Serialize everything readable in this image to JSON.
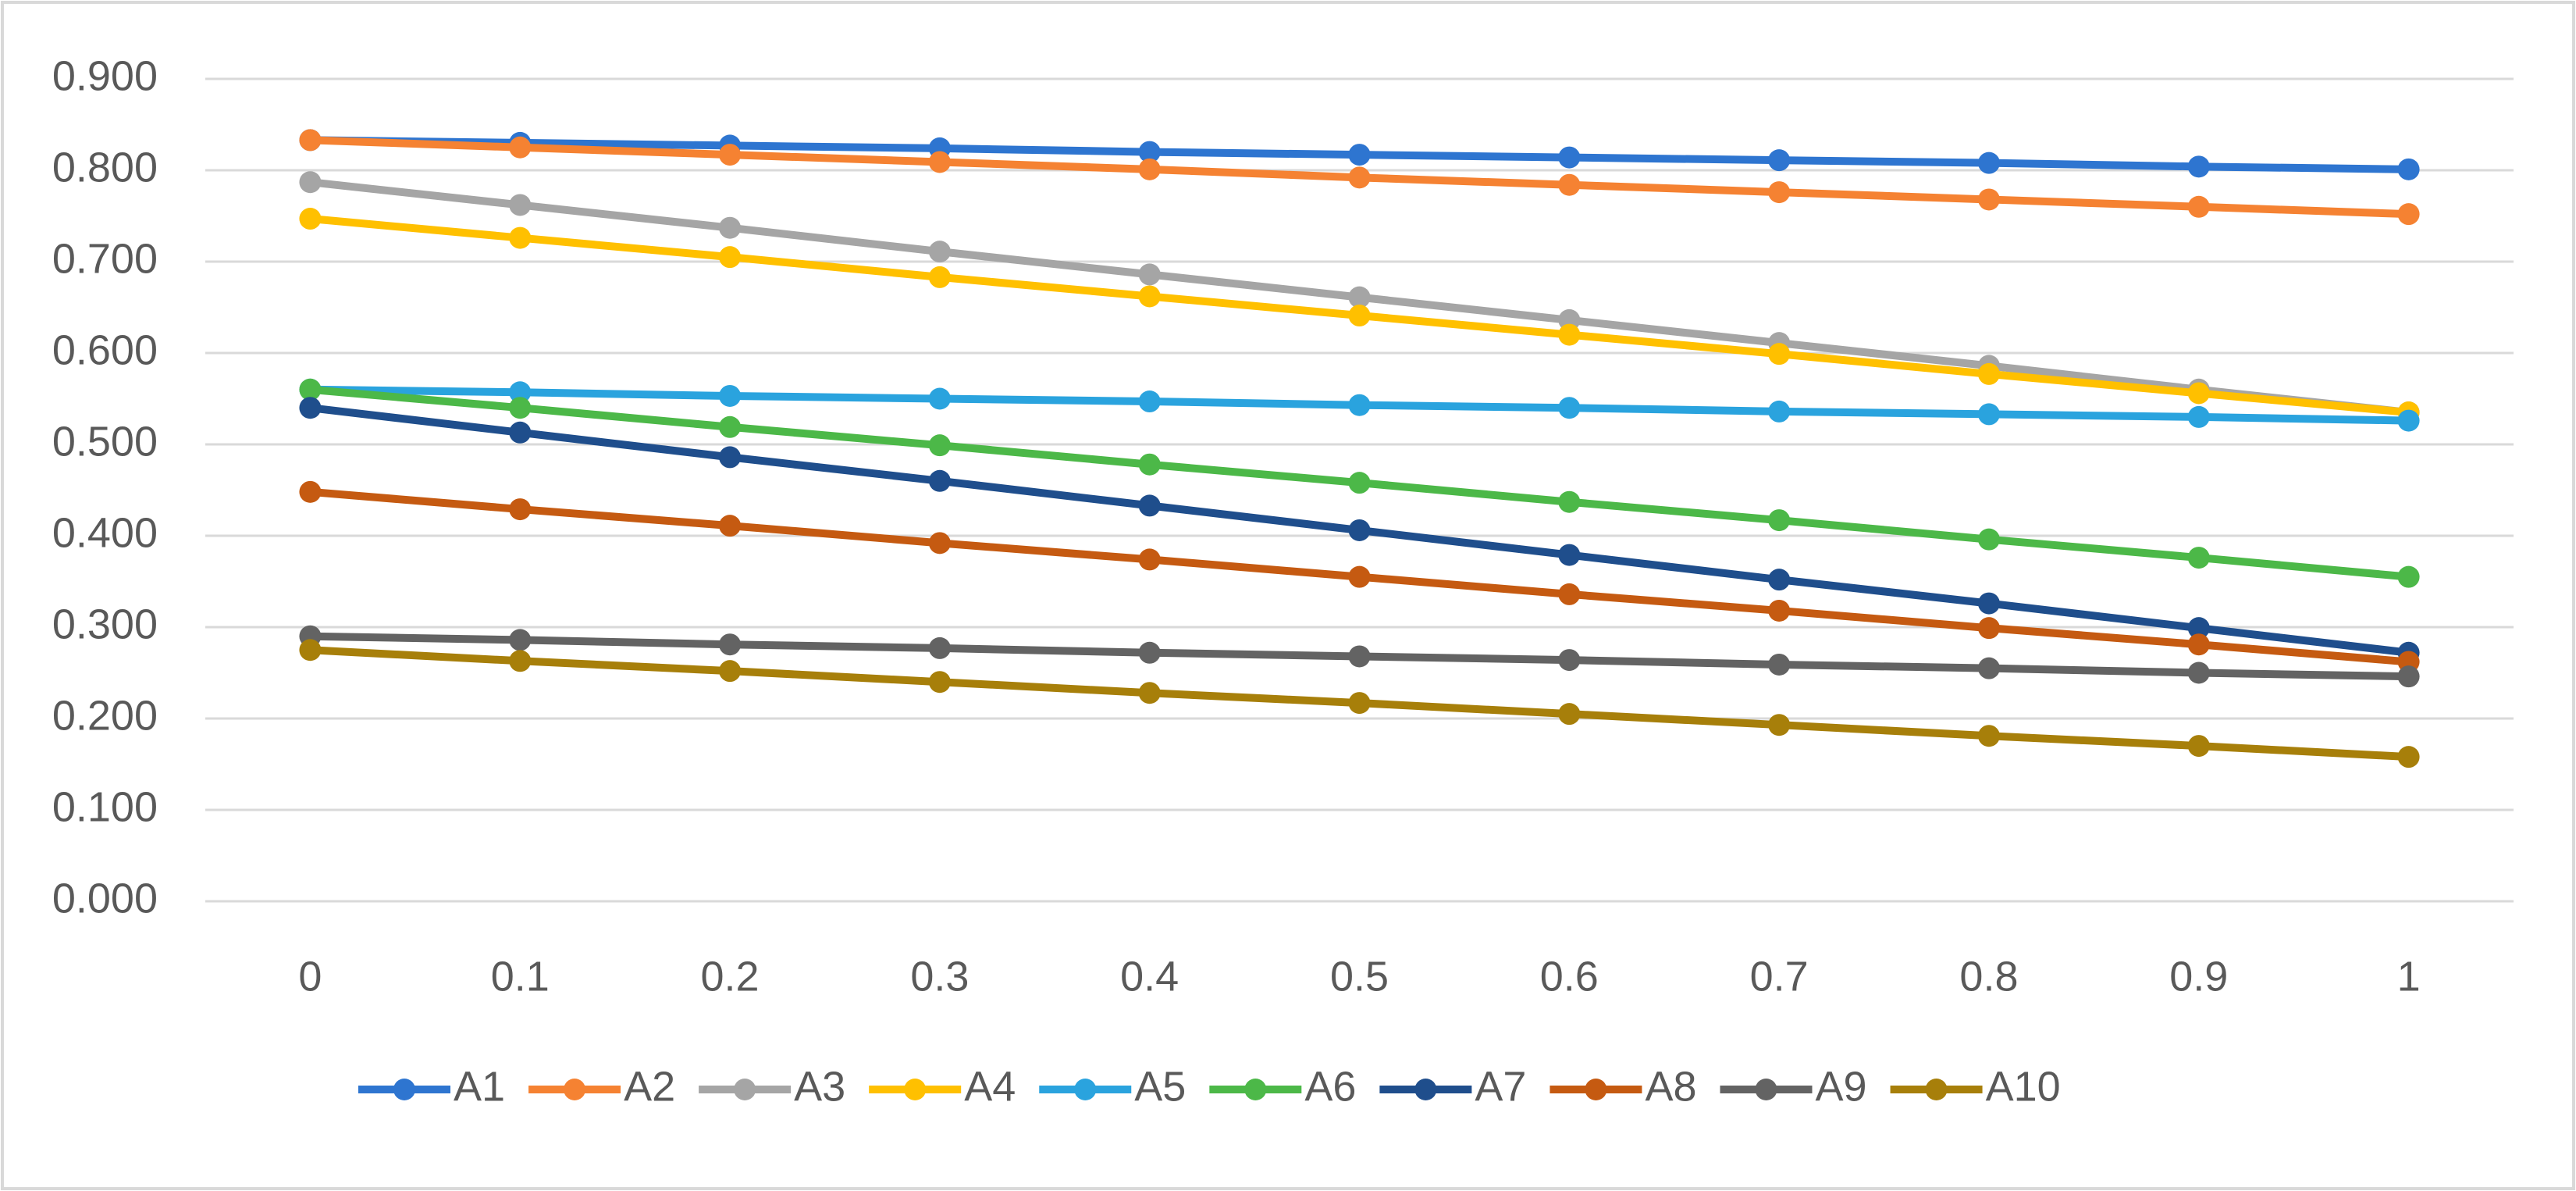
{
  "chart_data": {
    "type": "line",
    "categories": [
      "0",
      "0.1",
      "0.2",
      "0.3",
      "0.4",
      "0.5",
      "0.6",
      "0.7",
      "0.8",
      "0.9",
      "1"
    ],
    "ylim": [
      0,
      0.9
    ],
    "yticks": [
      {
        "value": 0,
        "label": "0.000"
      },
      {
        "value": 0.1,
        "label": "0.100"
      },
      {
        "value": 0.2,
        "label": "0.200"
      },
      {
        "value": 0.3,
        "label": "0.300"
      },
      {
        "value": 0.4,
        "label": "0.400"
      },
      {
        "value": 0.5,
        "label": "0.500"
      },
      {
        "value": 0.6,
        "label": "0.600"
      },
      {
        "value": 0.7,
        "label": "0.700"
      },
      {
        "value": 0.8,
        "label": "0.800"
      },
      {
        "value": 0.9,
        "label": "0.900"
      }
    ],
    "grid": true,
    "legend": "bottom",
    "series": [
      {
        "name": "A1",
        "color": "#2E75D0",
        "values": [
          0.833,
          0.83,
          0.827,
          0.824,
          0.82,
          0.817,
          0.814,
          0.811,
          0.808,
          0.804,
          0.801
        ]
      },
      {
        "name": "A2",
        "color": "#F58232",
        "values": [
          0.833,
          0.825,
          0.817,
          0.809,
          0.801,
          0.792,
          0.784,
          0.776,
          0.768,
          0.76,
          0.752
        ]
      },
      {
        "name": "A3",
        "color": "#A5A5A5",
        "values": [
          0.787,
          0.762,
          0.737,
          0.711,
          0.686,
          0.661,
          0.636,
          0.611,
          0.586,
          0.56,
          0.535
        ]
      },
      {
        "name": "A4",
        "color": "#FFC000",
        "values": [
          0.747,
          0.726,
          0.705,
          0.683,
          0.662,
          0.641,
          0.62,
          0.599,
          0.577,
          0.556,
          0.535
        ]
      },
      {
        "name": "A5",
        "color": "#2AA3DE",
        "values": [
          0.56,
          0.557,
          0.553,
          0.55,
          0.547,
          0.543,
          0.54,
          0.536,
          0.533,
          0.53,
          0.526
        ]
      },
      {
        "name": "A6",
        "color": "#4CB848",
        "values": [
          0.56,
          0.54,
          0.519,
          0.499,
          0.478,
          0.458,
          0.437,
          0.417,
          0.396,
          0.376,
          0.355
        ]
      },
      {
        "name": "A7",
        "color": "#1F4E8C",
        "values": [
          0.54,
          0.513,
          0.486,
          0.46,
          0.433,
          0.406,
          0.379,
          0.352,
          0.326,
          0.299,
          0.272
        ]
      },
      {
        "name": "A8",
        "color": "#C55A11",
        "values": [
          0.448,
          0.429,
          0.411,
          0.392,
          0.374,
          0.355,
          0.336,
          0.318,
          0.299,
          0.281,
          0.262
        ]
      },
      {
        "name": "A9",
        "color": "#636363",
        "values": [
          0.29,
          0.286,
          0.281,
          0.277,
          0.272,
          0.268,
          0.264,
          0.259,
          0.255,
          0.25,
          0.246
        ]
      },
      {
        "name": "A10",
        "color": "#A77F0A",
        "values": [
          0.275,
          0.263,
          0.252,
          0.24,
          0.228,
          0.217,
          0.205,
          0.193,
          0.181,
          0.17,
          0.158
        ]
      }
    ]
  }
}
